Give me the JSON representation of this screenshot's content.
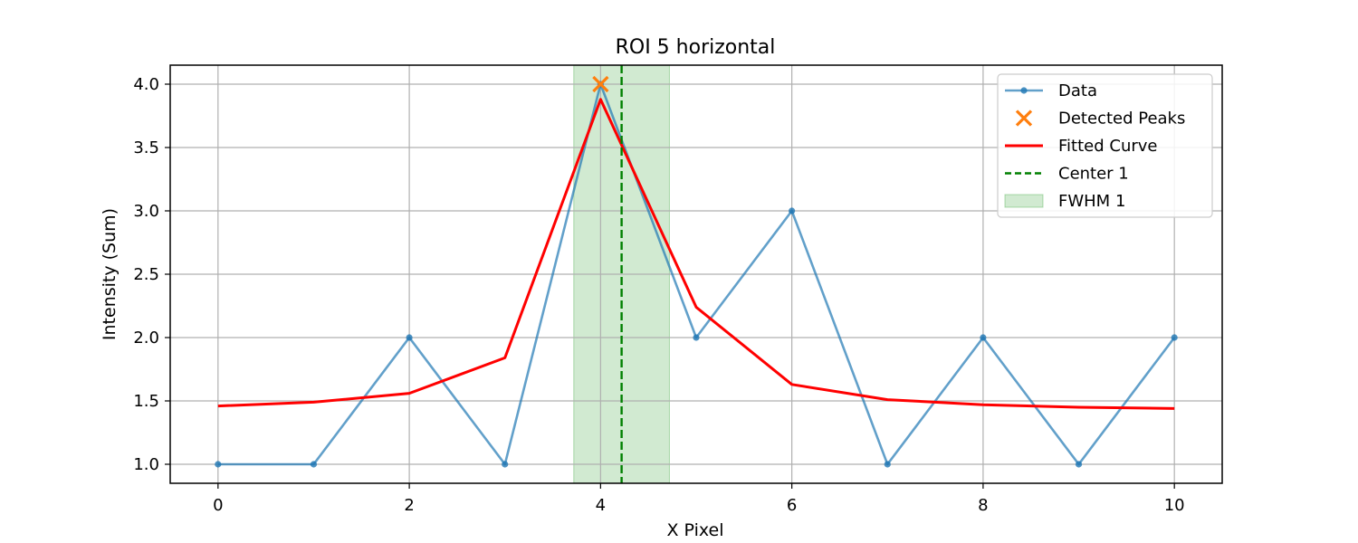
{
  "chart_data": {
    "type": "line",
    "title": "ROI 5 horizontal",
    "xlabel": "X Pixel",
    "ylabel": "Intensity (Sum)",
    "xlim": [
      -0.5,
      10.5
    ],
    "ylim": [
      0.85,
      4.15
    ],
    "xticks": [
      0,
      2,
      4,
      6,
      8,
      10
    ],
    "xtick_labels": [
      "0",
      "2",
      "4",
      "6",
      "8",
      "10"
    ],
    "yticks": [
      1.0,
      1.5,
      2.0,
      2.5,
      3.0,
      3.5,
      4.0
    ],
    "ytick_labels": [
      "1.0",
      "1.5",
      "2.0",
      "2.5",
      "3.0",
      "3.5",
      "4.0"
    ],
    "grid": true,
    "legend_position": "top-right",
    "series": [
      {
        "name": "Data",
        "kind": "line-marker",
        "color": "#1f77b4",
        "x": [
          0,
          1,
          2,
          3,
          4,
          5,
          6,
          7,
          8,
          9,
          10
        ],
        "values": [
          1,
          1,
          2,
          1,
          4,
          2,
          3,
          1,
          2,
          1,
          2
        ]
      },
      {
        "name": "Detected Peaks",
        "kind": "x-marker",
        "color": "#ff7f0e",
        "x": [
          4
        ],
        "values": [
          4.0
        ]
      },
      {
        "name": "Fitted Curve",
        "kind": "line",
        "color": "#ff0000",
        "x": [
          0,
          1,
          2,
          3,
          4,
          5,
          6,
          7,
          8,
          9,
          10
        ],
        "values": [
          1.46,
          1.49,
          1.56,
          1.84,
          3.88,
          2.24,
          1.63,
          1.51,
          1.47,
          1.45,
          1.44
        ]
      },
      {
        "name": "Center 1",
        "kind": "vline-dashed",
        "color": "#008000",
        "x": 4.22
      },
      {
        "name": "FWHM 1",
        "kind": "vspan",
        "color": "#2ca02c",
        "x_range": [
          3.72,
          4.72
        ]
      }
    ]
  }
}
